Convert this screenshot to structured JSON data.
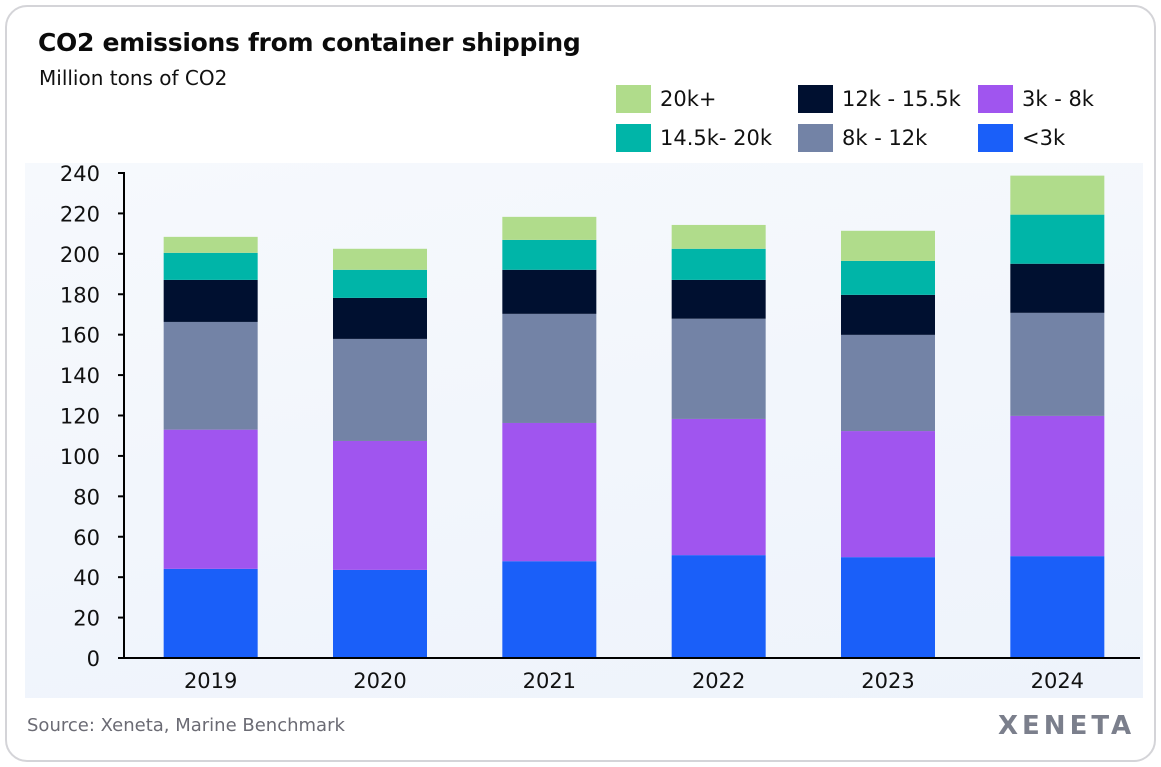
{
  "chart_data": {
    "type": "bar",
    "stacked": true,
    "title": "CO2 emissions from container shipping",
    "subtitle": "Million tons of CO2",
    "xlabel": "",
    "ylabel": "",
    "ylim": [
      0,
      240
    ],
    "yticks": [
      0,
      20,
      40,
      60,
      80,
      100,
      120,
      140,
      160,
      180,
      200,
      220,
      240
    ],
    "grid": false,
    "legend_position": "top-right",
    "categories": [
      "2019",
      "2020",
      "2021",
      "2022",
      "2023",
      "2024"
    ],
    "series": [
      {
        "name": "<3k",
        "color": "#1a5ff9",
        "values": [
          44.1,
          43.6,
          47.9,
          50.9,
          49.9,
          50.4
        ]
      },
      {
        "name": "3k - 8k",
        "color": "#a055ef",
        "values": [
          68.9,
          63.8,
          68.4,
          67.4,
          62.4,
          69.4
        ]
      },
      {
        "name": "8k - 12k",
        "color": "#7383a6",
        "values": [
          53.3,
          50.5,
          54.0,
          49.6,
          47.6,
          51.0
        ]
      },
      {
        "name": "12k - 15.5k",
        "color": "#001030",
        "values": [
          20.8,
          20.3,
          21.8,
          19.2,
          19.8,
          24.3
        ]
      },
      {
        "name": "14.5k- 20k",
        "color": "#00b5a8",
        "values": [
          13.4,
          13.9,
          14.8,
          15.4,
          16.8,
          24.3
        ]
      },
      {
        "name": "20k+",
        "color": "#b0dc8b",
        "values": [
          7.9,
          10.4,
          11.4,
          11.8,
          14.9,
          19.3
        ]
      }
    ]
  },
  "legend_order": [
    5,
    3,
    1,
    4,
    2,
    0
  ],
  "footer": {
    "source": "Source: Xeneta, Marine Benchmark",
    "logo": "XENETA"
  }
}
